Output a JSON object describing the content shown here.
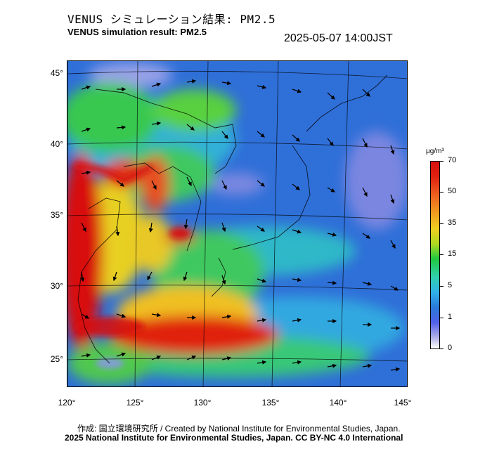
{
  "header": {
    "title_jp": "VENUS シミュレーション結果: PM2.5",
    "title_en": "VENUS simulation result: PM2.5",
    "timestamp": "2025-05-07 14:00JST"
  },
  "map": {
    "lat_labels": [
      "45°",
      "40°",
      "35°",
      "30°",
      "25°"
    ],
    "lon_labels": [
      "120°",
      "125°",
      "130°",
      "135°",
      "140°",
      "145°"
    ]
  },
  "colorbar": {
    "unit": "μg/m³",
    "ticks": [
      "70",
      "50",
      "35",
      "15",
      "5",
      "1",
      "0"
    ]
  },
  "footer": {
    "credit_line1": "作成: 国立環境研究所 / Created by National Institute for Environmental Studies, Japan.",
    "credit_line2": "2025 National Institute for Environmental Studies, Japan. CC BY-NC 4.0 International"
  },
  "colors": {
    "high": "#d81010",
    "mid": "#20c840",
    "low": "#2a7ad8",
    "min": "#ffffff"
  }
}
